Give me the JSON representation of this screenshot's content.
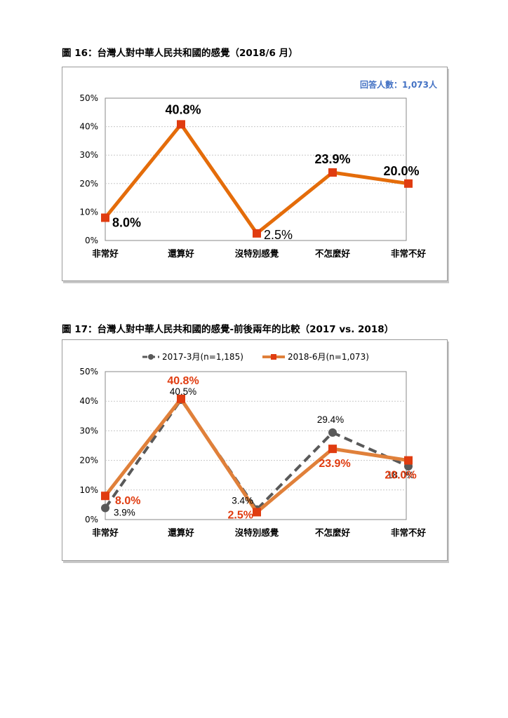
{
  "chart_data": [
    {
      "type": "line",
      "title": "圖 16：台灣人對中華人民共和國的感覺（2018/6 月）",
      "annotation": "回答人數：1,073人",
      "categories": [
        "非常好",
        "還算好",
        "沒特別感覺",
        "不怎麼好",
        "非常不好"
      ],
      "series": [
        {
          "values": [
            8.0,
            40.8,
            2.5,
            23.9,
            20.0
          ],
          "color": "#e46c0a",
          "marker_color": "#e03c10"
        }
      ],
      "data_labels": [
        "8.0%",
        "40.8%",
        "2.5%",
        "23.9%",
        "20.0%"
      ],
      "yticks": [
        "0%",
        "10%",
        "20%",
        "30%",
        "40%",
        "50%"
      ],
      "ylim": [
        0,
        50
      ],
      "grid": true,
      "legend": "none"
    },
    {
      "type": "line",
      "title": "圖 17：台灣人對中華人民共和國的感覺-前後兩年的比較（2017 vs. 2018）",
      "categories": [
        "非常好",
        "還算好",
        "沒特別感覺",
        "不怎麼好",
        "非常不好"
      ],
      "series": [
        {
          "name": "2017-3月(n=1,185)",
          "values": [
            3.9,
            40.5,
            3.4,
            29.4,
            18.0
          ],
          "color": "#595959",
          "style": "dashed",
          "data_labels": [
            "3.9%",
            "40.5%",
            "3.4%",
            "29.4%",
            "18.0%"
          ]
        },
        {
          "name": "2018-6月(n=1,073)",
          "values": [
            8.0,
            40.8,
            2.5,
            23.9,
            20.0
          ],
          "color": "#e0803a",
          "marker_color": "#e03c10",
          "data_labels": [
            "8.0%",
            "40.8%",
            "2.5%",
            "23.9%",
            "20.0%"
          ],
          "label_color": "#e03c10"
        }
      ],
      "yticks": [
        "0%",
        "10%",
        "20%",
        "30%",
        "40%",
        "50%"
      ],
      "ylim": [
        0,
        50
      ],
      "grid": true,
      "legend": "top"
    }
  ]
}
